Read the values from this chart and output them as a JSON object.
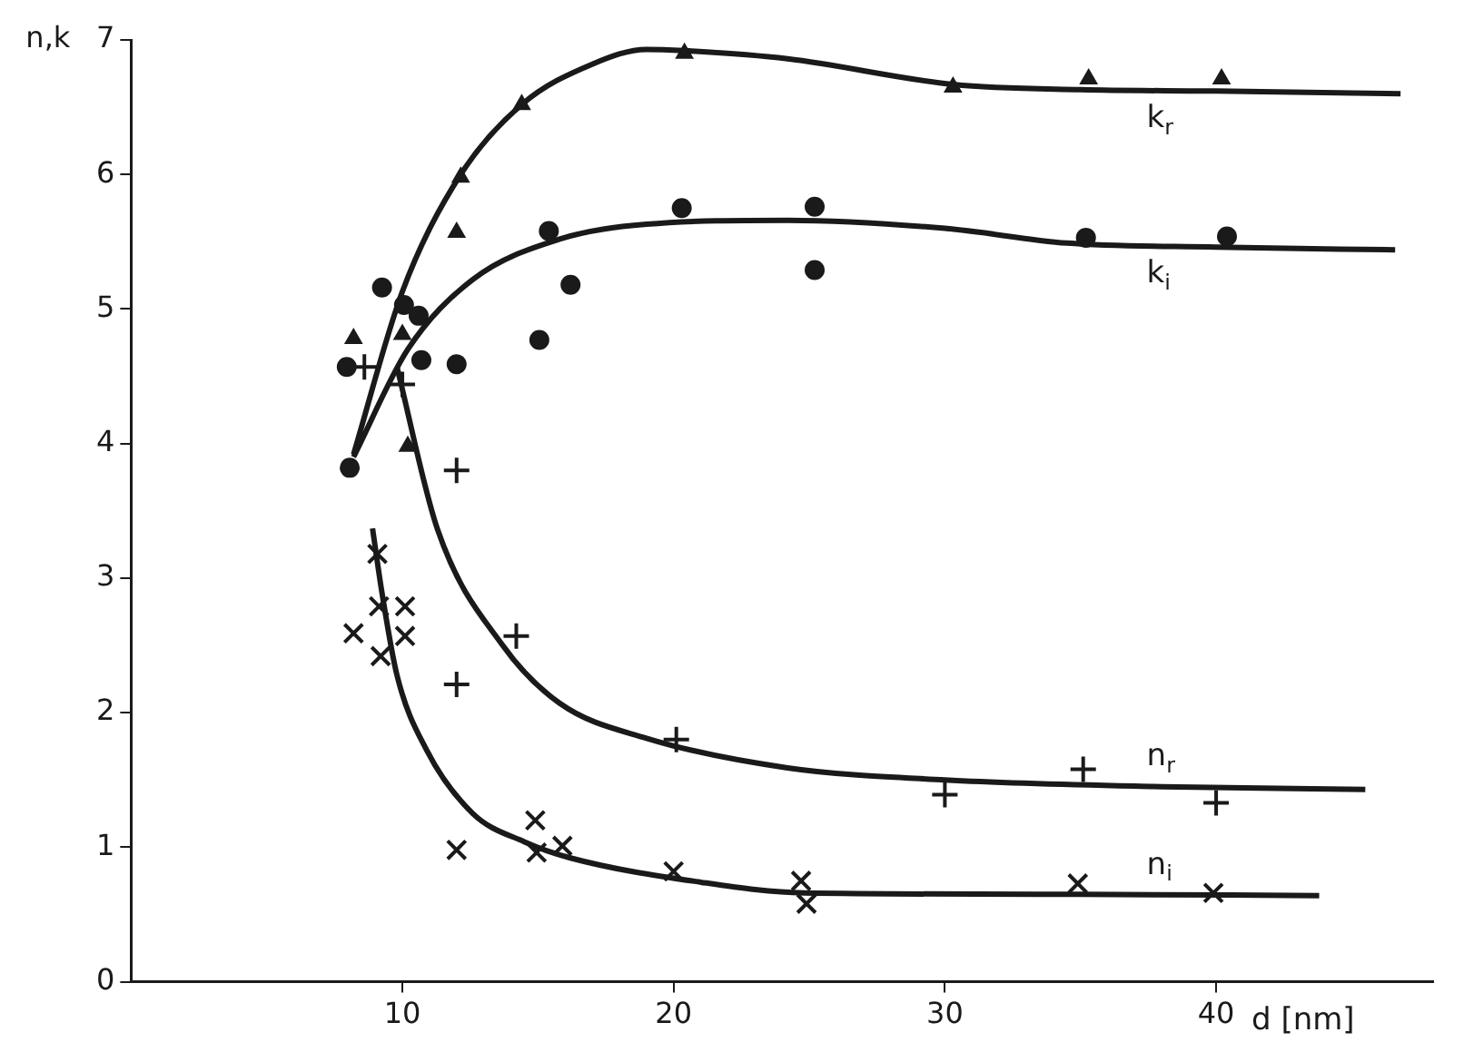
{
  "chart_data": {
    "type": "scatter",
    "xlabel": "d [nm]",
    "ylabel": "n,k",
    "xlim": [
      0,
      48
    ],
    "xticks": [
      10,
      20,
      30,
      40
    ],
    "ylim": [
      0,
      7
    ],
    "yticks": [
      0,
      1,
      2,
      3,
      4,
      5,
      6,
      7
    ],
    "grid": false,
    "legend": false,
    "series": [
      {
        "type": "line",
        "name": "k$_{r}$",
        "color": "#1a1a1a",
        "marker": "none",
        "line_style": "solid",
        "x": [
          8.2,
          10,
          12.15,
          14.4,
          17,
          19,
          20.4,
          24.2,
          30.3,
          35,
          40,
          46.8
        ],
        "values": [
          3.92,
          5.13,
          6.0,
          6.52,
          6.82,
          6.93,
          6.92,
          6.86,
          6.67,
          6.63,
          6.62,
          6.6
        ]
      },
      {
        "type": "line",
        "name": "k$_{i}$",
        "color": "#1a1a1a",
        "marker": "none",
        "line_style": "solid",
        "x": [
          8.2,
          10.2,
          12.6,
          15.8,
          19.0,
          24.2,
          30,
          34.5,
          40,
          46.6
        ],
        "values": [
          3.9,
          4.7,
          5.22,
          5.52,
          5.63,
          5.66,
          5.6,
          5.49,
          5.46,
          5.44
        ]
      },
      {
        "type": "line",
        "name": "n$_{r}$",
        "color": "#1a1a1a",
        "marker": "none",
        "line_style": "solid",
        "x": [
          9.8,
          11.3,
          13.7,
          15.8,
          19.0,
          24.2,
          30.0,
          38,
          45.5
        ],
        "values": [
          4.57,
          3.36,
          2.5,
          2.07,
          1.81,
          1.59,
          1.5,
          1.45,
          1.43
        ]
      },
      {
        "type": "line",
        "name": "n$_{i}$",
        "color": "#1a1a1a",
        "marker": "none",
        "line_style": "solid",
        "x": [
          8.9,
          9.25,
          9.8,
          10.9,
          12.6,
          14.5,
          16.2,
          21,
          24.8,
          35,
          43.8
        ],
        "values": [
          3.37,
          2.89,
          2.28,
          1.72,
          1.25,
          1.04,
          0.92,
          0.74,
          0.66,
          0.65,
          0.64
        ]
      },
      {
        "type": "scatter",
        "color": "#1a1a1a",
        "marker": "triangle",
        "x": [
          8.2,
          10.0,
          10.2,
          12.0,
          12.15,
          14.4,
          20.4,
          30.3,
          35.3,
          40.2
        ],
        "values": [
          4.78,
          4.81,
          3.98,
          5.57,
          5.98,
          6.52,
          6.9,
          6.65,
          6.71,
          6.71
        ]
      },
      {
        "type": "scatter",
        "color": "#1a1a1a",
        "marker": "circle",
        "x": [
          7.95,
          8.06,
          9.25,
          10.06,
          10.6,
          10.7,
          12.0,
          15.05,
          15.4,
          16.2,
          20.3,
          25.2,
          25.2,
          35.2,
          40.4
        ],
        "values": [
          4.57,
          3.82,
          5.16,
          5.03,
          4.95,
          4.62,
          4.59,
          4.77,
          5.58,
          5.18,
          5.75,
          5.76,
          5.29,
          5.53,
          5.54
        ]
      },
      {
        "type": "scatter",
        "color": "#1a1a1a",
        "marker": "cross",
        "x": [
          8.6,
          10.0,
          12.0,
          12.0,
          14.2,
          20.1,
          30.0,
          35.1,
          40.0
        ],
        "values": [
          4.57,
          4.44,
          3.8,
          2.21,
          2.57,
          1.8,
          1.39,
          1.58,
          1.33
        ]
      },
      {
        "type": "scatter",
        "color": "#1a1a1a",
        "marker": "cross",
        "x": [
          8.2,
          9.08,
          9.14,
          9.2,
          10.1,
          10.1,
          12.0,
          14.9,
          14.95,
          15.9,
          20.0,
          24.7,
          24.9,
          34.9,
          39.9
        ],
        "values": [
          2.59,
          3.18,
          2.79,
          2.42,
          2.79,
          2.57,
          0.98,
          1.2,
          0.96,
          1.01,
          0.82,
          0.75,
          0.58,
          0.73,
          0.66
        ]
      }
    ]
  }
}
